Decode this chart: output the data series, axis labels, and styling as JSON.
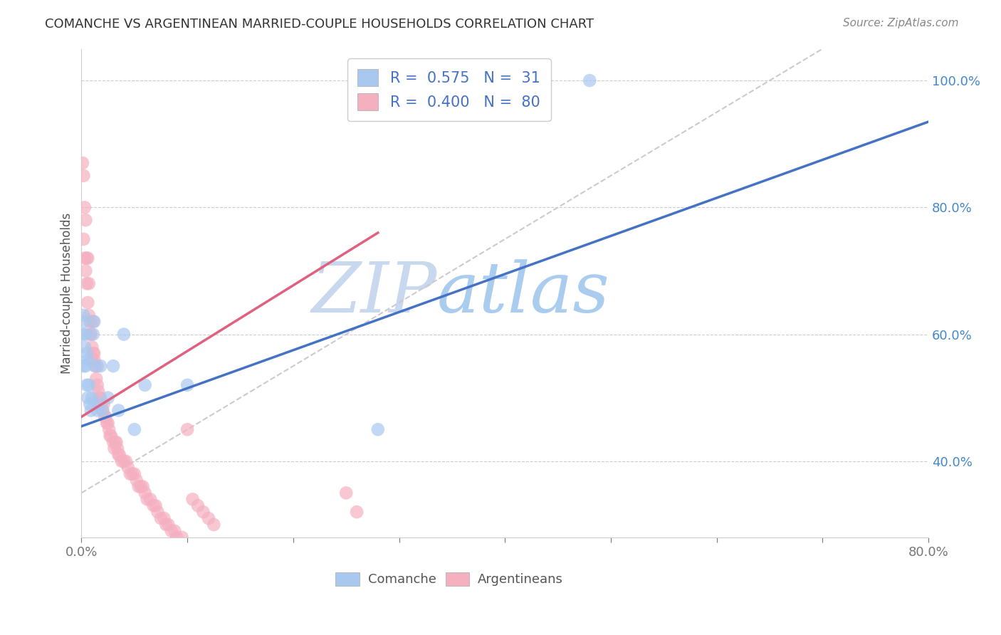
{
  "title": "COMANCHE VS ARGENTINEAN MARRIED-COUPLE HOUSEHOLDS CORRELATION CHART",
  "source": "Source: ZipAtlas.com",
  "ylabel": "Married-couple Households",
  "xlim": [
    0.0,
    0.8
  ],
  "ylim": [
    0.28,
    1.05
  ],
  "xtick_pos": [
    0.0,
    0.1,
    0.2,
    0.3,
    0.4,
    0.5,
    0.6,
    0.7,
    0.8
  ],
  "xtick_labels": [
    "0.0%",
    "",
    "",
    "",
    "",
    "",
    "",
    "",
    "80.0%"
  ],
  "yticks_right": [
    0.4,
    0.6,
    0.8,
    1.0
  ],
  "ytick_labels_right": [
    "40.0%",
    "60.0%",
    "80.0%",
    "100.0%"
  ],
  "comanche_R": 0.575,
  "comanche_N": 31,
  "argentinean_R": 0.4,
  "argentinean_N": 80,
  "comanche_color": "#A8C8F0",
  "argentinean_color": "#F5B0C0",
  "comanche_line_color": "#4472C4",
  "argentinean_line_color": "#E06080",
  "ref_line_color": "#D0C8D0",
  "watermark_zip": "ZIP",
  "watermark_atlas": "atlas",
  "watermark_color": "#DDEEFF",
  "legend_text_color": "#4472C4",
  "comanche_x": [
    0.001,
    0.002,
    0.002,
    0.003,
    0.003,
    0.004,
    0.004,
    0.005,
    0.005,
    0.006,
    0.006,
    0.007,
    0.008,
    0.009,
    0.01,
    0.011,
    0.012,
    0.013,
    0.015,
    0.016,
    0.018,
    0.02,
    0.025,
    0.03,
    0.035,
    0.04,
    0.05,
    0.06,
    0.1,
    0.28,
    0.48
  ],
  "comanche_y": [
    0.6,
    0.63,
    0.55,
    0.58,
    0.62,
    0.55,
    0.6,
    0.52,
    0.57,
    0.5,
    0.56,
    0.52,
    0.49,
    0.48,
    0.5,
    0.6,
    0.62,
    0.55,
    0.48,
    0.49,
    0.55,
    0.48,
    0.5,
    0.55,
    0.48,
    0.6,
    0.45,
    0.52,
    0.52,
    0.45,
    1.0
  ],
  "argentinean_x": [
    0.001,
    0.002,
    0.002,
    0.003,
    0.003,
    0.004,
    0.004,
    0.005,
    0.005,
    0.006,
    0.006,
    0.007,
    0.007,
    0.008,
    0.008,
    0.009,
    0.009,
    0.01,
    0.01,
    0.011,
    0.011,
    0.012,
    0.012,
    0.013,
    0.014,
    0.015,
    0.015,
    0.016,
    0.017,
    0.018,
    0.019,
    0.02,
    0.021,
    0.022,
    0.023,
    0.024,
    0.025,
    0.026,
    0.027,
    0.028,
    0.03,
    0.031,
    0.032,
    0.033,
    0.034,
    0.035,
    0.036,
    0.038,
    0.04,
    0.042,
    0.044,
    0.046,
    0.048,
    0.05,
    0.052,
    0.054,
    0.056,
    0.058,
    0.06,
    0.062,
    0.065,
    0.068,
    0.07,
    0.072,
    0.075,
    0.078,
    0.08,
    0.082,
    0.085,
    0.088,
    0.09,
    0.095,
    0.1,
    0.105,
    0.11,
    0.115,
    0.12,
    0.125,
    0.25,
    0.26
  ],
  "argentinean_y": [
    0.87,
    0.85,
    0.75,
    0.8,
    0.72,
    0.78,
    0.7,
    0.72,
    0.68,
    0.65,
    0.72,
    0.63,
    0.68,
    0.62,
    0.6,
    0.62,
    0.6,
    0.58,
    0.56,
    0.62,
    0.57,
    0.56,
    0.57,
    0.55,
    0.53,
    0.52,
    0.55,
    0.51,
    0.5,
    0.5,
    0.49,
    0.48,
    0.49,
    0.47,
    0.47,
    0.46,
    0.46,
    0.45,
    0.44,
    0.44,
    0.43,
    0.42,
    0.43,
    0.43,
    0.42,
    0.41,
    0.41,
    0.4,
    0.4,
    0.4,
    0.39,
    0.38,
    0.38,
    0.38,
    0.37,
    0.36,
    0.36,
    0.36,
    0.35,
    0.34,
    0.34,
    0.33,
    0.33,
    0.32,
    0.31,
    0.31,
    0.3,
    0.3,
    0.29,
    0.29,
    0.28,
    0.28,
    0.45,
    0.34,
    0.33,
    0.32,
    0.31,
    0.3,
    0.35,
    0.32
  ],
  "blue_line_x0": 0.0,
  "blue_line_y0": 0.455,
  "blue_line_x1": 0.8,
  "blue_line_y1": 0.935,
  "pink_line_x0": 0.0,
  "pink_line_y0": 0.47,
  "pink_line_x1": 0.28,
  "pink_line_y1": 0.76,
  "ref_line_x0": 0.0,
  "ref_line_y0": 0.35,
  "ref_line_x1": 0.7,
  "ref_line_y1": 1.05
}
